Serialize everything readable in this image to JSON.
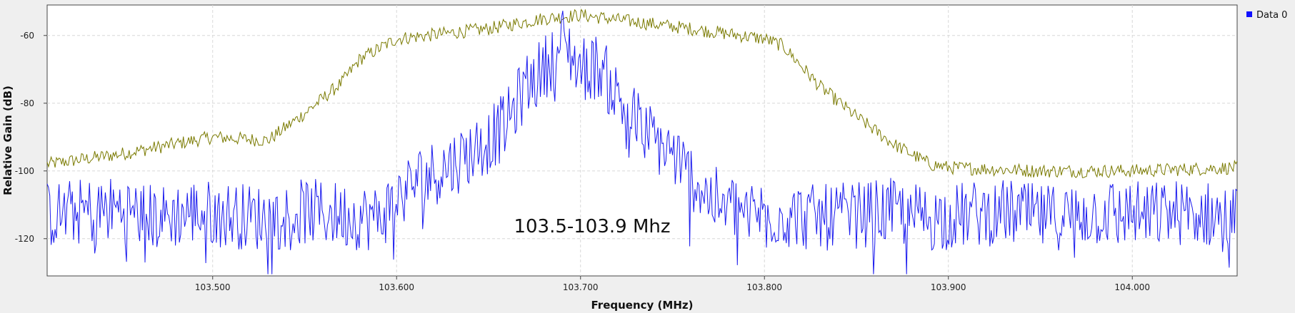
{
  "chart_data": {
    "type": "line",
    "title": "",
    "xlabel": "Frequency (MHz)",
    "ylabel": "Relative Gain (dB)",
    "xlim": [
      103.41,
      104.057
    ],
    "ylim": [
      -131,
      -51
    ],
    "x_ticks": [
      103.5,
      103.6,
      103.7,
      103.8,
      103.9,
      104.0
    ],
    "x_tick_labels": [
      "103.500",
      "103.600",
      "103.700",
      "103.800",
      "103.900",
      "104.000"
    ],
    "y_ticks": [
      -60,
      -80,
      -100,
      -120
    ],
    "y_tick_labels": [
      "-60",
      "-80",
      "-100",
      "-120"
    ],
    "grid": true,
    "legend": {
      "placement": "top-right",
      "entries": [
        {
          "label": "Data 0",
          "color": "#1010ff"
        }
      ]
    },
    "annotation": "103.5-103.9 Mhz",
    "series": [
      {
        "name": "Data 0",
        "color": "#1a1aee",
        "x": [
          103.41,
          103.43,
          103.45,
          103.47,
          103.49,
          103.51,
          103.53,
          103.55,
          103.57,
          103.59,
          103.61,
          103.63,
          103.65,
          103.66,
          103.67,
          103.68,
          103.69,
          103.7,
          103.71,
          103.72,
          103.73,
          103.74,
          103.75,
          103.77,
          103.79,
          103.81,
          103.83,
          103.85,
          103.87,
          103.89,
          103.91,
          103.93,
          103.95,
          103.97,
          103.99,
          104.01,
          104.03,
          104.057
        ],
        "values": [
          -113,
          -112,
          -111,
          -114,
          -112,
          -113,
          -114,
          -112,
          -113,
          -114,
          -103,
          -98,
          -91,
          -86,
          -75,
          -70,
          -61,
          -70,
          -69,
          -78,
          -85,
          -91,
          -95,
          -108,
          -112,
          -113,
          -114,
          -113,
          -112,
          -114,
          -113,
          -112,
          -114,
          -113,
          -112,
          -113,
          -112,
          -114
        ],
        "noise": 10
      },
      {
        "name": "",
        "color": "#7a7a00",
        "x": [
          103.41,
          103.45,
          103.5,
          103.53,
          103.55,
          103.57,
          103.58,
          103.6,
          103.65,
          103.68,
          103.7,
          103.73,
          103.76,
          103.8,
          103.81,
          103.83,
          103.85,
          103.87,
          103.89,
          103.9,
          103.95,
          104.0,
          104.057
        ],
        "values": [
          -98,
          -95,
          -90,
          -91,
          -83,
          -74,
          -67,
          -61,
          -58,
          -55,
          -54,
          -56,
          -58,
          -61,
          -63,
          -75,
          -84,
          -92,
          -98,
          -99,
          -100,
          -100,
          -99
        ],
        "noise": 2
      }
    ]
  }
}
